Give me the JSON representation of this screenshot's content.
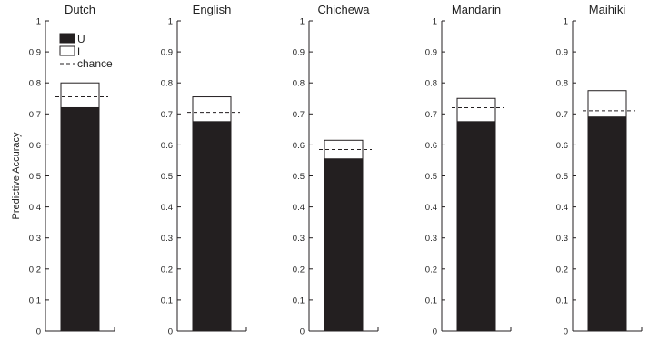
{
  "chart_data": {
    "type": "bar",
    "ylabel": "Predictive Accuracy",
    "ylim": [
      0,
      1
    ],
    "yticks": [
      "0",
      "0.1",
      "0.2",
      "0.3",
      "0.4",
      "0.5",
      "0.6",
      "0.7",
      "0.8",
      "0.9",
      "1"
    ],
    "legend": {
      "placement": "top-left",
      "entries": [
        {
          "name": "U",
          "color": "#231f20"
        },
        {
          "name": "L",
          "color": "#ffffff"
        },
        {
          "name": "chance",
          "style": "dashed"
        }
      ]
    },
    "panels": [
      {
        "title": "Dutch",
        "U": 0.72,
        "L": 0.8,
        "chance": 0.755
      },
      {
        "title": "English",
        "U": 0.675,
        "L": 0.755,
        "chance": 0.705
      },
      {
        "title": "Chichewa",
        "U": 0.555,
        "L": 0.615,
        "chance": 0.585
      },
      {
        "title": "Mandarin",
        "U": 0.675,
        "L": 0.75,
        "chance": 0.72
      },
      {
        "title": "Maihiki",
        "U": 0.69,
        "L": 0.775,
        "chance": 0.71
      }
    ]
  }
}
